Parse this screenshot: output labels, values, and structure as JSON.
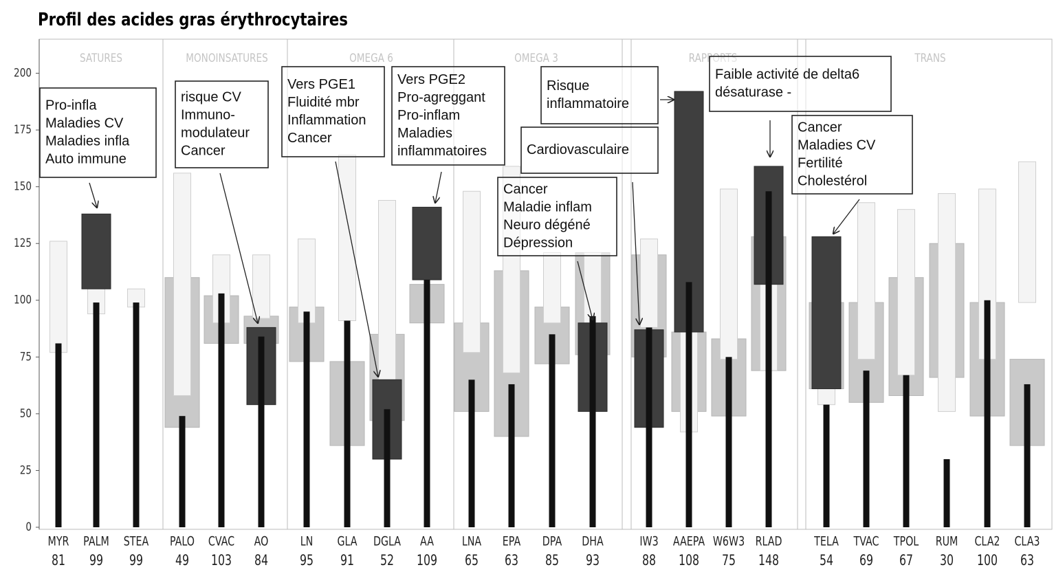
{
  "chart_data": {
    "type": "range-bar",
    "title": "Profil des acides gras érythrocytaires",
    "groups": [
      "SATURES",
      "MONOINSATURES",
      "OMEGA 6",
      "OMEGA 3",
      "RAPPORTS",
      "TRANS"
    ],
    "categories": [
      "MYR",
      "PALM",
      "STEA",
      "PALO",
      "CVAC",
      "AO",
      "LN",
      "GLA",
      "DGLA",
      "AA",
      "LNA",
      "EPA",
      "DPA",
      "DHA",
      "IW3",
      "AAEPA",
      "W6W3",
      "RLAD",
      "TELA",
      "TVAC",
      "TPOL",
      "RUM",
      "CLA2",
      "CLA3"
    ],
    "values": [
      81,
      99,
      99,
      49,
      103,
      84,
      95,
      91,
      52,
      109,
      65,
      63,
      85,
      93,
      88,
      108,
      75,
      148,
      54,
      69,
      67,
      30,
      100,
      63
    ],
    "ref_light": [
      [
        77,
        126
      ],
      [
        94,
        106
      ],
      [
        97,
        105
      ],
      [
        58,
        156
      ],
      [
        90,
        120
      ],
      [
        92,
        120
      ],
      [
        90,
        127
      ],
      [
        91,
        164
      ],
      [
        56,
        144
      ],
      null,
      [
        77,
        148
      ],
      [
        68,
        159
      ],
      [
        90,
        121
      ],
      [
        90,
        121
      ],
      [
        88,
        127
      ],
      [
        42,
        156
      ],
      [
        74,
        149
      ],
      [
        69,
        128
      ],
      [
        54,
        76
      ],
      [
        74,
        143
      ],
      [
        67,
        140
      ],
      [
        51,
        147
      ],
      [
        74,
        149
      ],
      [
        99,
        161
      ]
    ],
    "ref_gray": [
      null,
      null,
      null,
      [
        44,
        110
      ],
      [
        81,
        102
      ],
      [
        81,
        93
      ],
      [
        73,
        97
      ],
      [
        36,
        73
      ],
      [
        47,
        85
      ],
      [
        90,
        107
      ],
      [
        51,
        90
      ],
      [
        40,
        113
      ],
      [
        72,
        97
      ],
      [
        76,
        121
      ],
      [
        75,
        120
      ],
      [
        51,
        86
      ],
      [
        49,
        83
      ],
      [
        69,
        128
      ],
      [
        61,
        99
      ],
      [
        55,
        99
      ],
      [
        58,
        110
      ],
      [
        66,
        125
      ],
      [
        49,
        99
      ],
      [
        36,
        74
      ]
    ],
    "dark": [
      null,
      [
        105,
        138
      ],
      null,
      null,
      null,
      [
        54,
        88
      ],
      null,
      null,
      [
        30,
        65
      ],
      [
        109,
        141
      ],
      null,
      null,
      null,
      [
        51,
        90
      ],
      [
        44,
        87
      ],
      [
        86,
        192
      ],
      null,
      [
        107,
        159
      ],
      [
        61,
        128
      ],
      null,
      null,
      null,
      null,
      null
    ],
    "ylim": [
      0,
      215
    ],
    "yticks": [
      0,
      25,
      50,
      75,
      100,
      125,
      150,
      175,
      200
    ],
    "colors": {
      "light": "#f4f4f4",
      "gray": "#c9c9c9",
      "dark": "#3f3f3f",
      "bar": "#111111"
    },
    "annotations": [
      {
        "lines": [
          "Pro-infla",
          "Maladies CV",
          "Maladies infla",
          "Auto immune"
        ]
      },
      {
        "lines": [
          "risque CV",
          "Immuno-",
          "modulateur",
          "Cancer"
        ]
      },
      {
        "lines": [
          "Vers PGE1",
          "Fluidité mbr",
          "Inflammation",
          "Cancer"
        ]
      },
      {
        "lines": [
          "Vers PGE2",
          "Pro-agreggant",
          "Pro-inflam",
          "Maladies",
          "inflammatoires"
        ]
      },
      {
        "lines": [
          "Risque",
          "inflammatoire"
        ]
      },
      {
        "lines": [
          "Cardiovasculaire"
        ]
      },
      {
        "lines": [
          "Cancer",
          "Maladie inflam",
          "Neuro dégéné",
          "Dépression"
        ]
      },
      {
        "lines": [
          "Faible activité de delta6",
          "désaturase -"
        ]
      },
      {
        "lines": [
          "Cancer",
          "Maladies CV",
          "Fertilité",
          "Cholestérol"
        ]
      }
    ]
  }
}
